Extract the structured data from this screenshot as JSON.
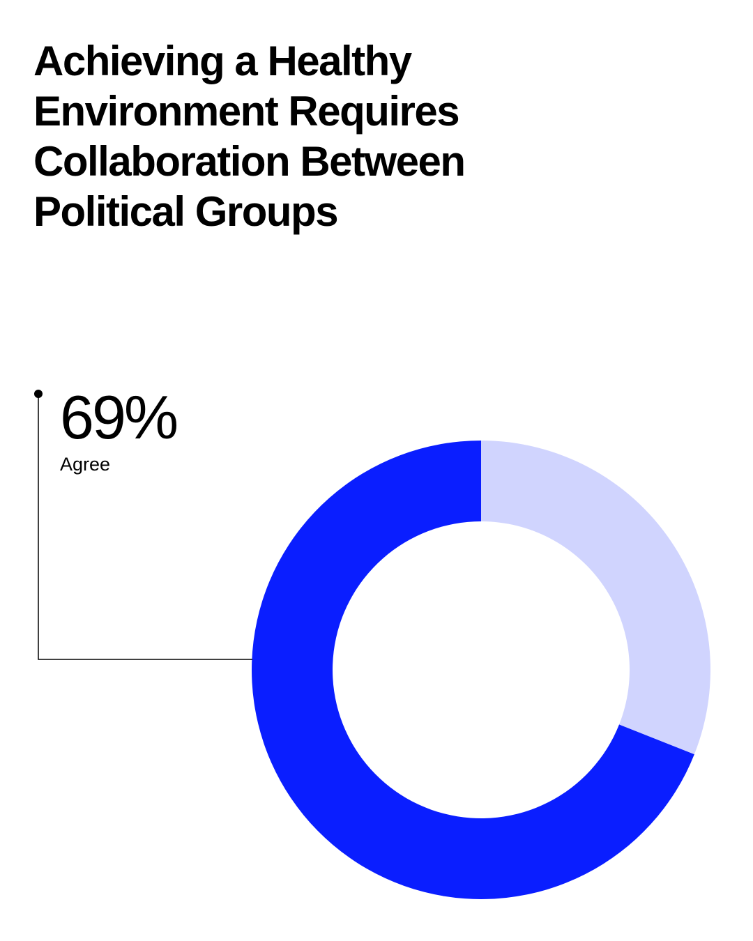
{
  "chart_data": {
    "type": "donut",
    "title": "Achieving a Healthy Environment Requires Collaboration Between Political Groups",
    "categories": [
      "Agree",
      null
    ],
    "values": [
      69,
      31
    ],
    "value_labels": [
      "69%",
      null
    ],
    "colors": [
      "#0a1eff",
      "#d0d4fe"
    ]
  }
}
